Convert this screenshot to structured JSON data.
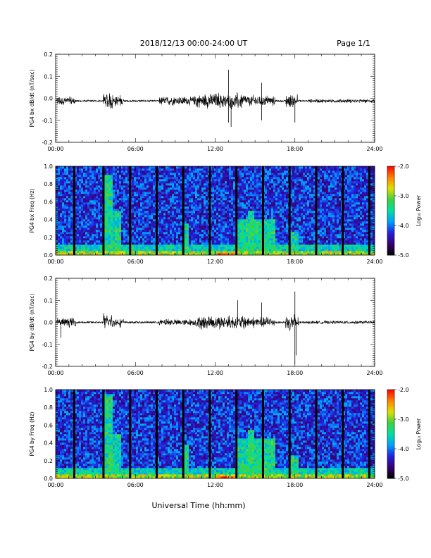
{
  "header": {
    "title": "2018/12/13  00:00-24:00 UT",
    "page": "Page 1/1"
  },
  "footer": {
    "xlabel": "Universal Time (hh:mm)"
  },
  "colorbar": {
    "label": "Log₁₀ Power",
    "ticks": [
      "-2.0",
      "-3.0",
      "-4.0",
      "-5.0"
    ],
    "range": [
      -5.0,
      -2.0
    ],
    "colors": [
      "#000000",
      "#3a0070",
      "#2020e0",
      "#00a0ff",
      "#00e0a0",
      "#40d040",
      "#e0e000",
      "#ff8000",
      "#ff0000"
    ]
  },
  "chart_data": [
    {
      "type": "line",
      "ylabel": "PG4 bx dB/dt (nT/sec)",
      "x_ticks": [
        "00:00",
        "06:00",
        "12:00",
        "18:00",
        "24:00"
      ],
      "y_ticks": [
        "0.2",
        "0.1",
        "0.0",
        "-0.1",
        "-0.2"
      ],
      "xlim": [
        0,
        24
      ],
      "ylim": [
        -0.2,
        0.2
      ],
      "activity_bursts_hours": [
        [
          0.1,
          1.5,
          0.02
        ],
        [
          3.6,
          4.3,
          0.04
        ],
        [
          4.3,
          5.1,
          0.025
        ],
        [
          7.8,
          10.5,
          0.02
        ],
        [
          10.5,
          14.3,
          0.035
        ],
        [
          14.3,
          16.5,
          0.025
        ],
        [
          17.3,
          18.2,
          0.03
        ],
        [
          19.0,
          24.0,
          0.008
        ]
      ],
      "spikes": [
        {
          "t": 13.0,
          "v": 0.13
        },
        {
          "t": 13.2,
          "v": -0.13
        },
        {
          "t": 15.5,
          "v": 0.07
        },
        {
          "t": 15.5,
          "v": -0.1
        },
        {
          "t": 18.0,
          "v": -0.11
        },
        {
          "t": 13.0,
          "v": -0.11
        }
      ]
    },
    {
      "type": "heatmap",
      "ylabel": "PG4 bx Freq (Hz)",
      "x_ticks": [
        "00:00",
        "06:00",
        "12:00",
        "18:00",
        "24:00"
      ],
      "y_ticks": [
        "1.0",
        "0.8",
        "0.6",
        "0.4",
        "0.2",
        "0.0"
      ],
      "xlim": [
        0,
        24
      ],
      "ylim": [
        0,
        1.0
      ],
      "data_gaps_hours": [
        1.4,
        3.6,
        5.6,
        7.6,
        9.6,
        11.6,
        13.6,
        15.6,
        17.6,
        19.6,
        21.6,
        23.6
      ],
      "enhanced_bands_hours": [
        [
          3.7,
          4.3,
          0.9
        ],
        [
          4.3,
          5.0,
          0.5
        ],
        [
          9.6,
          10.0,
          0.35
        ],
        [
          13.5,
          16.5,
          0.4
        ],
        [
          14.4,
          15.0,
          0.5
        ],
        [
          17.6,
          18.3,
          0.25
        ]
      ]
    },
    {
      "type": "line",
      "ylabel": "PG4 by dB/dt (nT/sec)",
      "x_ticks": [
        "00:00",
        "06:00",
        "12:00",
        "18:00",
        "24:00"
      ],
      "y_ticks": [
        "0.2",
        "0.1",
        "0.0",
        "-0.1",
        "-0.2"
      ],
      "xlim": [
        0,
        24
      ],
      "ylim": [
        -0.2,
        0.2
      ],
      "activity_bursts_hours": [
        [
          0.1,
          1.5,
          0.02
        ],
        [
          3.6,
          4.3,
          0.04
        ],
        [
          4.3,
          5.1,
          0.02
        ],
        [
          7.8,
          10.5,
          0.015
        ],
        [
          10.5,
          14.3,
          0.03
        ],
        [
          14.3,
          16.5,
          0.025
        ],
        [
          17.3,
          18.3,
          0.035
        ],
        [
          19.0,
          24.0,
          0.007
        ]
      ],
      "spikes": [
        {
          "t": 18.0,
          "v": 0.14
        },
        {
          "t": 18.0,
          "v": -0.19
        },
        {
          "t": 15.5,
          "v": 0.09
        },
        {
          "t": 13.7,
          "v": 0.1
        },
        {
          "t": 0.4,
          "v": -0.07
        },
        {
          "t": 18.1,
          "v": -0.15
        }
      ]
    },
    {
      "type": "heatmap",
      "ylabel": "PG4 by Freq (Hz)",
      "x_ticks": [
        "00:00",
        "06:00",
        "12:00",
        "18:00",
        "24:00"
      ],
      "y_ticks": [
        "1.0",
        "0.8",
        "0.6",
        "0.4",
        "0.2",
        "0.0"
      ],
      "xlim": [
        0,
        24
      ],
      "ylim": [
        0,
        1.0
      ],
      "data_gaps_hours": [
        1.4,
        3.6,
        5.6,
        7.6,
        9.6,
        11.6,
        13.6,
        15.6,
        17.6,
        19.6,
        21.6,
        23.6
      ],
      "enhanced_bands_hours": [
        [
          3.7,
          4.3,
          0.95
        ],
        [
          4.3,
          5.0,
          0.5
        ],
        [
          9.6,
          10.0,
          0.38
        ],
        [
          13.5,
          16.5,
          0.45
        ],
        [
          14.4,
          15.0,
          0.55
        ],
        [
          17.6,
          18.3,
          0.25
        ]
      ]
    }
  ]
}
